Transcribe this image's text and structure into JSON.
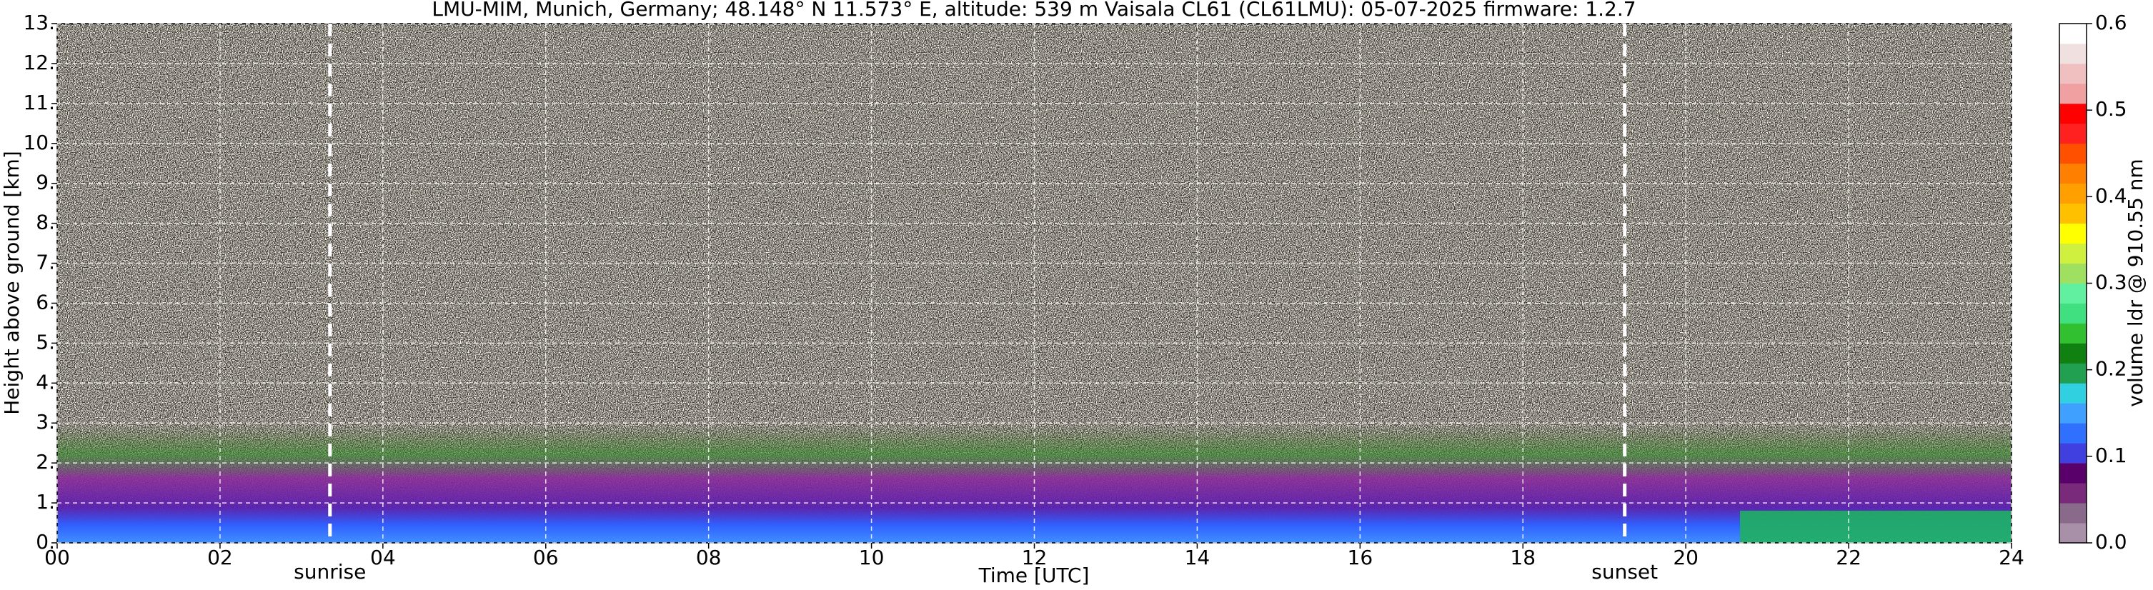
{
  "chart_data": {
    "type": "heatmap",
    "title": "LMU-MIM, Munich, Germany; 48.148° N 11.573° E, altitude: 539 m    Vaisala CL61 (CL61LMU): 05-07-2025    firmware: 1.2.7",
    "x_label": "Time [UTC]",
    "y_label": "Height above ground [km]",
    "colorbar_label": "volume ldr @ 910.55 nm",
    "xlim": [
      0,
      24
    ],
    "ylim": [
      0,
      13
    ],
    "clim": [
      0,
      0.6
    ],
    "xticks": [
      {
        "value": 0,
        "label": "00"
      },
      {
        "value": 2,
        "label": "02"
      },
      {
        "value": 4,
        "label": "04"
      },
      {
        "value": 6,
        "label": "06"
      },
      {
        "value": 8,
        "label": "08"
      },
      10,
      12,
      14,
      16,
      18,
      20,
      22,
      24
    ],
    "yticks": [
      {
        "value": 0,
        "label": "0."
      },
      {
        "value": 1,
        "label": "1."
      },
      {
        "value": 2,
        "label": "2."
      },
      {
        "value": 3,
        "label": "3."
      },
      {
        "value": 4,
        "label": "4."
      },
      {
        "value": 5,
        "label": "5."
      },
      {
        "value": 6,
        "label": "6."
      },
      {
        "value": 7,
        "label": "7."
      },
      {
        "value": 8,
        "label": "8."
      },
      {
        "value": 9,
        "label": "9."
      },
      {
        "value": 10,
        "label": "10."
      },
      {
        "value": 11,
        "label": "11."
      },
      {
        "value": 12,
        "label": "12."
      },
      {
        "value": 13,
        "label": "13."
      }
    ],
    "cticks": [
      {
        "value": 0,
        "label": "0.0"
      },
      0.1,
      0.2,
      0.3,
      0.4,
      0.5,
      0.6
    ],
    "colorbar_colors": [
      "#a890a8",
      "#8a6a8a",
      "#7a2a7a",
      "#5a006a",
      "#4040e0",
      "#3070ff",
      "#40a0ff",
      "#30d0e0",
      "#20a050",
      "#108010",
      "#30c030",
      "#40e080",
      "#60f0a0",
      "#a0e060",
      "#d0f040",
      "#ffff00",
      "#ffc000",
      "#ffa000",
      "#ff8000",
      "#ff5000",
      "#ff2020",
      "#ff0000",
      "#f0a0a0",
      "#f0c0c0",
      "#f0e0e0",
      "#ffffff"
    ],
    "grid": true,
    "annotations": [
      {
        "text": "sunrise",
        "x": 3.35
      },
      {
        "text": "sunset",
        "x": 19.25
      }
    ]
  }
}
